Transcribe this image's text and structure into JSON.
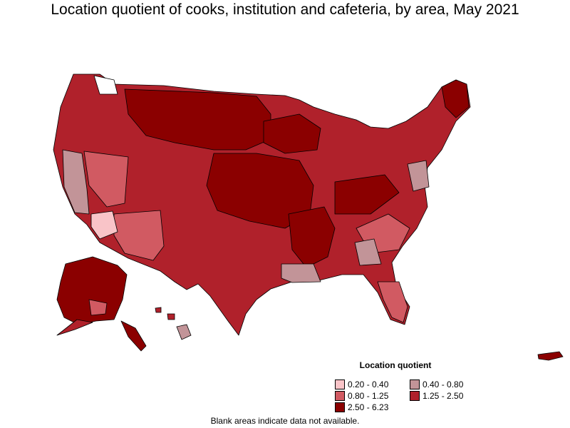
{
  "title": "Location quotient of cooks, institution and cafeteria, by area, May 2021",
  "legend": {
    "title": "Location quotient",
    "items": [
      {
        "label": "0.20 - 0.40",
        "color": "#f9c4c8"
      },
      {
        "label": "0.40 - 0.80",
        "color": "#c29498"
      },
      {
        "label": "0.80 - 1.25",
        "color": "#d15a62"
      },
      {
        "label": "1.25 - 2.50",
        "color": "#b0212b"
      },
      {
        "label": "2.50 - 6.23",
        "color": "#8b0000"
      }
    ]
  },
  "note": "Blank areas indicate data not available.",
  "colors": {
    "border": "#000000",
    "no_data": "#ffffff"
  }
}
